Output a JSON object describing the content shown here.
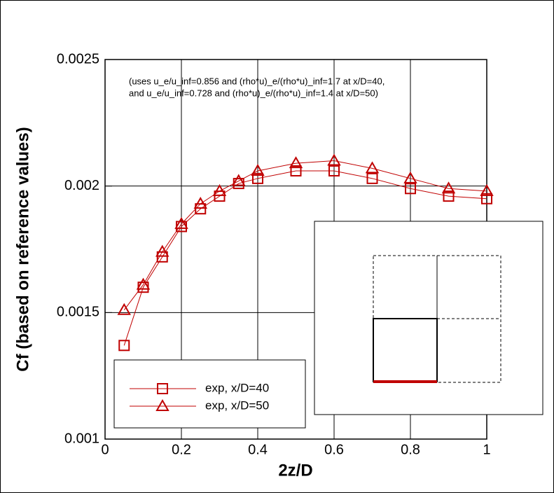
{
  "chart_data": {
    "type": "line",
    "x_label": "2z/D",
    "y_label": "Cf (based on reference values)",
    "annotation": [
      "(uses u_e/u_inf=0.856 and (rho*u)_e/(rho*u)_inf=1.7 at x/D=40,",
      "and u_e/u_inf=0.728 and (rho*u)_e/(rho*u)_inf=1.4 at x/D=50)"
    ],
    "x": [
      0.05,
      0.1,
      0.15,
      0.2,
      0.25,
      0.3,
      0.35,
      0.4,
      0.5,
      0.6,
      0.7,
      0.8,
      0.9,
      1.0
    ],
    "series": [
      {
        "name": "exp, x/D=40",
        "color": "#c00000",
        "marker": "square",
        "values": [
          0.00137,
          0.0016,
          0.00172,
          0.00184,
          0.00191,
          0.00196,
          0.00201,
          0.00203,
          0.00206,
          0.00206,
          0.00203,
          0.00199,
          0.00196,
          0.00195
        ]
      },
      {
        "name": "exp, x/D=50",
        "color": "#c00000",
        "marker": "triangle",
        "values": [
          0.00151,
          0.00161,
          0.00174,
          0.00185,
          0.00193,
          0.00198,
          0.00202,
          0.00206,
          0.00209,
          0.0021,
          0.00207,
          0.00203,
          0.00199,
          0.00198
        ]
      }
    ],
    "xlim": [
      0,
      1
    ],
    "xticks": [
      0,
      0.2,
      0.4,
      0.6,
      0.8,
      1
    ],
    "ylim": [
      0.001,
      0.0025
    ],
    "yticks": [
      0.001,
      0.0015,
      0.002,
      0.0025
    ],
    "grid": true
  }
}
